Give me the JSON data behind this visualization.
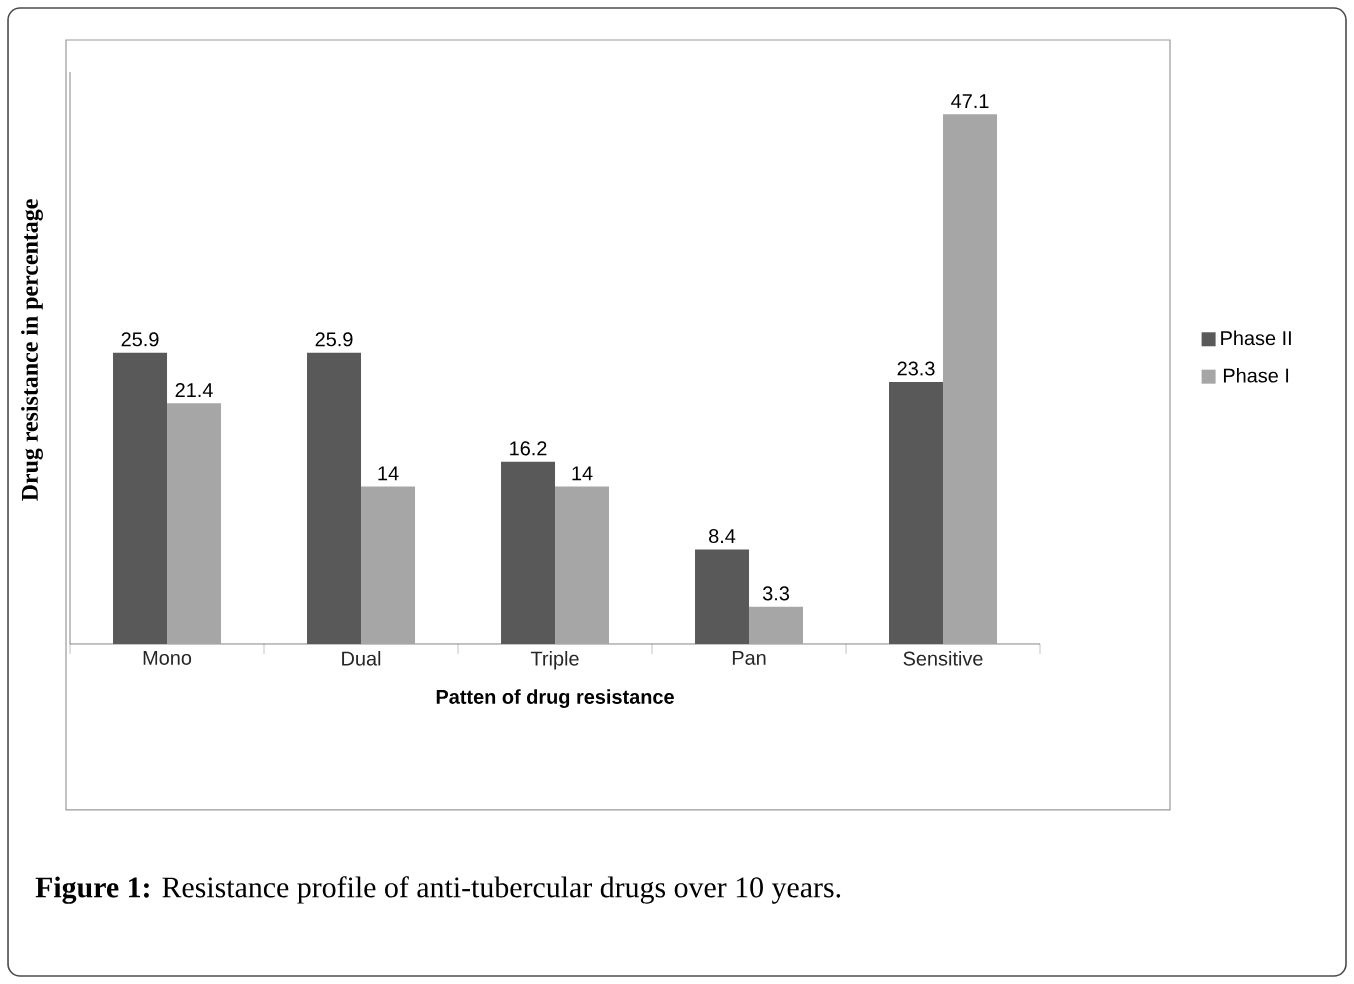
{
  "chart_data": {
    "type": "bar",
    "xlabel": "Patten of drug resistance",
    "ylabel": "Drug resistance in percentage",
    "categories": [
      "Mono",
      "Dual",
      "Triple",
      "Pan",
      "Sensitive"
    ],
    "series": [
      {
        "name": "Phase II",
        "color": "#595959",
        "values": [
          25.9,
          25.9,
          16.2,
          8.4,
          23.3
        ]
      },
      {
        "name": "Phase I",
        "color": "#a6a6a6",
        "values": [
          21.4,
          14,
          14,
          3.3,
          47.1
        ]
      }
    ],
    "data_labels": true,
    "legend": "right",
    "annotations": [
      "**Figure 1:** Resistance profile of anti-tubercular drugs over 10 years."
    ]
  }
}
